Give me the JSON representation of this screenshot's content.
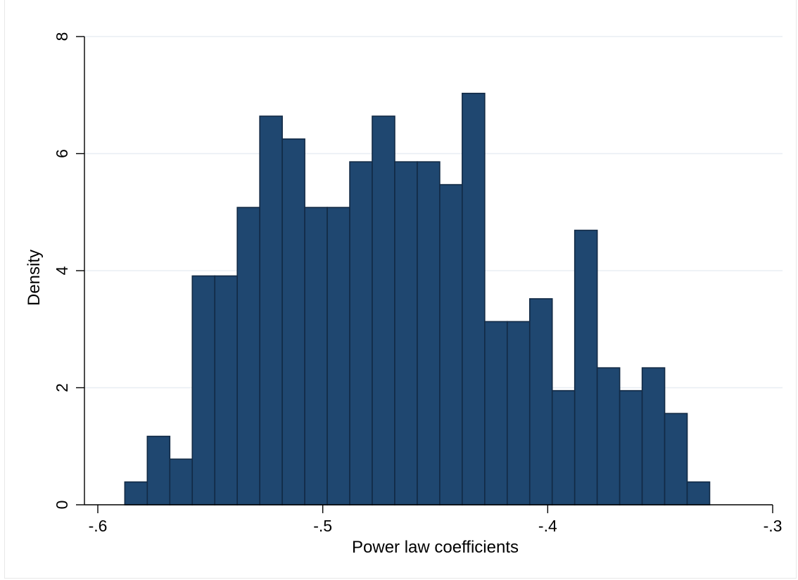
{
  "colors": {
    "bar_fill": "#1f4770",
    "bar_stroke": "#122a45",
    "grid": "#e8eef3",
    "axis": "#000000",
    "background": "#ffffff"
  },
  "chart_data": {
    "type": "bar",
    "title": "",
    "xlabel": "Power law coefficients",
    "ylabel": "Density",
    "xlim": [
      -0.6,
      -0.3
    ],
    "ylim": [
      0,
      8
    ],
    "grid": true,
    "x_ticks": [
      {
        "value": -0.6,
        "label": "-.6"
      },
      {
        "value": -0.5,
        "label": "-.5"
      },
      {
        "value": -0.4,
        "label": "-.4"
      },
      {
        "value": -0.3,
        "label": "-.3"
      }
    ],
    "y_ticks": [
      {
        "value": 0,
        "label": "0"
      },
      {
        "value": 2,
        "label": "2"
      },
      {
        "value": 4,
        "label": "4"
      },
      {
        "value": 6,
        "label": "6"
      },
      {
        "value": 8,
        "label": "8"
      }
    ],
    "bin_width": 0.01,
    "bins": [
      {
        "start": -0.588,
        "density": 0.39
      },
      {
        "start": -0.578,
        "density": 1.17
      },
      {
        "start": -0.568,
        "density": 0.78
      },
      {
        "start": -0.558,
        "density": 3.91
      },
      {
        "start": -0.548,
        "density": 3.91
      },
      {
        "start": -0.538,
        "density": 5.08
      },
      {
        "start": -0.528,
        "density": 6.64
      },
      {
        "start": -0.518,
        "density": 6.25
      },
      {
        "start": -0.508,
        "density": 5.08
      },
      {
        "start": -0.498,
        "density": 5.08
      },
      {
        "start": -0.488,
        "density": 5.86
      },
      {
        "start": -0.478,
        "density": 6.64
      },
      {
        "start": -0.468,
        "density": 5.86
      },
      {
        "start": -0.458,
        "density": 5.86
      },
      {
        "start": -0.448,
        "density": 5.47
      },
      {
        "start": -0.438,
        "density": 7.03
      },
      {
        "start": -0.428,
        "density": 3.13
      },
      {
        "start": -0.418,
        "density": 3.13
      },
      {
        "start": -0.408,
        "density": 3.52
      },
      {
        "start": -0.398,
        "density": 1.95
      },
      {
        "start": -0.388,
        "density": 4.69
      },
      {
        "start": -0.378,
        "density": 2.34
      },
      {
        "start": -0.368,
        "density": 1.95
      },
      {
        "start": -0.358,
        "density": 2.34
      },
      {
        "start": -0.348,
        "density": 1.56
      },
      {
        "start": -0.338,
        "density": 0.39
      }
    ]
  }
}
